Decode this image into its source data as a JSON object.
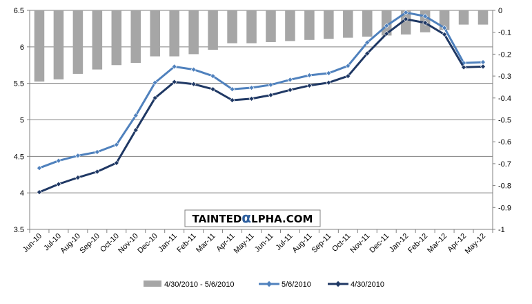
{
  "chart_data": {
    "type": "bar+line",
    "categories": [
      "Jun-10",
      "Jul-10",
      "Aug-10",
      "Sep-10",
      "Oct-10",
      "Nov-10",
      "Dec-10",
      "Jan-11",
      "Feb-11",
      "Mar-11",
      "Apr-11",
      "May-11",
      "Jun-11",
      "Jul-11",
      "Aug-11",
      "Sep-11",
      "Oct-11",
      "Nov-11",
      "Dec-11",
      "Jan-12",
      "Feb-12",
      "Mar-12",
      "Apr-12",
      "May-12"
    ],
    "y_left": {
      "range": [
        3.5,
        6.5
      ],
      "ticks": [
        "3.5",
        "4",
        "4.5",
        "5",
        "5.5",
        "6",
        "6.5"
      ],
      "tick_values": [
        3.5,
        4,
        4.5,
        5,
        5.5,
        6,
        6.5
      ]
    },
    "y_right": {
      "range": [
        -1,
        0
      ],
      "ticks": [
        "-1",
        "-0.9",
        "-0.8",
        "-0.7",
        "-0.6",
        "-0.5",
        "-0.4",
        "-0.3",
        "-0.2",
        "-0.1",
        "0"
      ],
      "tick_values": [
        -1,
        -0.9,
        -0.8,
        -0.7,
        -0.6,
        -0.5,
        -0.4,
        -0.3,
        -0.2,
        -0.1,
        0
      ]
    },
    "grid": true,
    "legend_position": "bottom",
    "series": [
      {
        "name": "4/30/2010 - 5/6/2010",
        "kind": "bar",
        "axis": "right",
        "color": "#a6a6a6",
        "values": [
          -0.325,
          -0.315,
          -0.29,
          -0.27,
          -0.25,
          -0.24,
          -0.21,
          -0.21,
          -0.2,
          -0.18,
          -0.15,
          -0.15,
          -0.145,
          -0.14,
          -0.135,
          -0.13,
          -0.125,
          -0.12,
          -0.115,
          -0.11,
          -0.1,
          -0.09,
          -0.065,
          -0.065
        ]
      },
      {
        "name": "5/6/2010",
        "kind": "line",
        "axis": "left",
        "color": "#4f81bd",
        "values": [
          4.34,
          4.44,
          4.51,
          4.56,
          4.66,
          5.06,
          5.51,
          5.73,
          5.69,
          5.6,
          5.42,
          5.44,
          5.48,
          5.55,
          5.61,
          5.64,
          5.74,
          6.06,
          6.29,
          6.47,
          6.42,
          6.26,
          5.78,
          5.79
        ]
      },
      {
        "name": "4/30/2010",
        "kind": "line",
        "axis": "left",
        "color": "#1f3864",
        "values": [
          4.01,
          4.12,
          4.21,
          4.29,
          4.41,
          4.86,
          5.3,
          5.52,
          5.49,
          5.42,
          5.27,
          5.29,
          5.34,
          5.41,
          5.47,
          5.51,
          5.6,
          5.91,
          6.18,
          6.38,
          6.33,
          6.17,
          5.72,
          5.73
        ]
      }
    ]
  },
  "watermark": {
    "prefix": "TAINTED",
    "symbol": "α",
    "suffix": "LPHA.COM"
  }
}
